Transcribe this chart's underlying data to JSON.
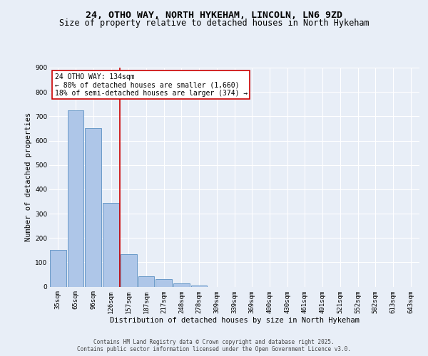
{
  "title_line1": "24, OTHO WAY, NORTH HYKEHAM, LINCOLN, LN6 9ZD",
  "title_line2": "Size of property relative to detached houses in North Hykeham",
  "xlabel": "Distribution of detached houses by size in North Hykeham",
  "ylabel": "Number of detached properties",
  "footer_line1": "Contains HM Land Registry data © Crown copyright and database right 2025.",
  "footer_line2": "Contains public sector information licensed under the Open Government Licence v3.0.",
  "categories": [
    "35sqm",
    "65sqm",
    "96sqm",
    "126sqm",
    "157sqm",
    "187sqm",
    "217sqm",
    "248sqm",
    "278sqm",
    "309sqm",
    "339sqm",
    "369sqm",
    "400sqm",
    "430sqm",
    "461sqm",
    "491sqm",
    "521sqm",
    "552sqm",
    "582sqm",
    "613sqm",
    "643sqm"
  ],
  "values": [
    150,
    723,
    650,
    345,
    132,
    42,
    30,
    12,
    5,
    0,
    0,
    0,
    0,
    0,
    0,
    0,
    0,
    0,
    0,
    0,
    0
  ],
  "bar_color": "#aec6e8",
  "bar_edge_color": "#5a8fc2",
  "vline_x": 3.5,
  "vline_color": "#cc0000",
  "annotation_text": "24 OTHO WAY: 134sqm\n← 80% of detached houses are smaller (1,660)\n18% of semi-detached houses are larger (374) →",
  "annotation_box_color": "#ffffff",
  "annotation_box_edge_color": "#cc0000",
  "ylim": [
    0,
    900
  ],
  "yticks": [
    0,
    100,
    200,
    300,
    400,
    500,
    600,
    700,
    800,
    900
  ],
  "bg_color": "#e8eef7",
  "plot_bg_color": "#e8eef7",
  "grid_color": "#ffffff",
  "title_fontsize": 9.5,
  "subtitle_fontsize": 8.5,
  "axis_label_fontsize": 7.5,
  "tick_fontsize": 6.5,
  "annotation_fontsize": 7,
  "footer_fontsize": 5.5
}
